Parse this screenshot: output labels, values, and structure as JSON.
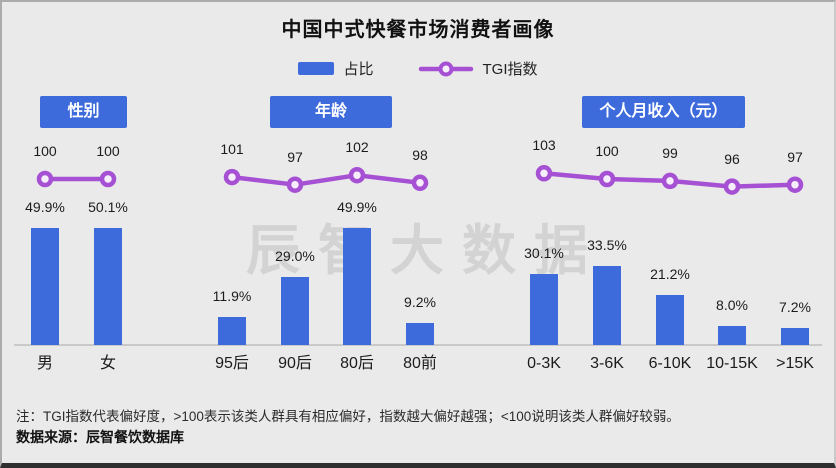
{
  "title": "中国中式快餐市场消费者画像",
  "legend": {
    "bar_label": "占比",
    "line_label": "TGI指数"
  },
  "watermark": "辰智大数据",
  "colors": {
    "bar": "#3D6BDC",
    "line": "#A651D4",
    "marker_fill": "#F6EFFB",
    "background": "#EAEAEA",
    "badge_text": "#FFFFFF",
    "axis": "#C9C9C9",
    "watermark": "#D3D3D3"
  },
  "notes": {
    "note": "注：TGI指数代表偏好度，>100表示该类人群具有相应偏好，指数越大偏好越强；<100说明该类人群偏好较弱。",
    "source": "数据来源：辰智餐饮数据库"
  },
  "chart_data": [
    {
      "type": "bar",
      "title": "性别",
      "categories": [
        "男",
        "女"
      ],
      "series": [
        {
          "name": "占比",
          "unit": "%",
          "values": [
            49.9,
            50.1
          ]
        },
        {
          "name": "TGI指数",
          "type": "line",
          "values": [
            100,
            100
          ]
        }
      ],
      "legend_position": "top",
      "grid": false
    },
    {
      "type": "bar",
      "title": "年龄",
      "categories": [
        "95后",
        "90后",
        "80后",
        "80前"
      ],
      "series": [
        {
          "name": "占比",
          "unit": "%",
          "values": [
            11.9,
            29.0,
            49.9,
            9.2
          ]
        },
        {
          "name": "TGI指数",
          "type": "line",
          "values": [
            101,
            97,
            102,
            98
          ]
        }
      ],
      "legend_position": "top",
      "grid": false
    },
    {
      "type": "bar",
      "title": "个人月收入（元）",
      "categories": [
        "0-3K",
        "3-6K",
        "6-10K",
        "10-15K",
        ">15K"
      ],
      "series": [
        {
          "name": "占比",
          "unit": "%",
          "values": [
            30.1,
            33.5,
            21.2,
            8.0,
            7.2
          ]
        },
        {
          "name": "TGI指数",
          "type": "line",
          "values": [
            103,
            100,
            99,
            96,
            97
          ]
        }
      ],
      "legend_position": "top",
      "grid": false
    }
  ]
}
